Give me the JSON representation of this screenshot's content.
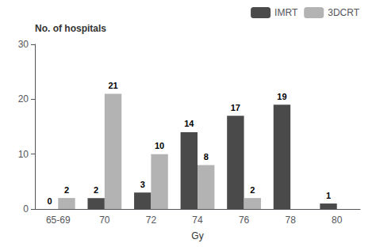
{
  "chart_data": {
    "type": "bar",
    "categories": [
      "65-69",
      "70",
      "72",
      "74",
      "76",
      "78",
      "80"
    ],
    "series": [
      {
        "name": "IMRT",
        "color": "#4a4a4a",
        "values": [
          0,
          2,
          3,
          14,
          17,
          19,
          1
        ]
      },
      {
        "name": "3DCRT",
        "color": "#b3b3b3",
        "values": [
          2,
          21,
          10,
          8,
          2,
          0,
          0
        ],
        "value_labels": [
          "2",
          "21",
          "10",
          "8",
          "2",
          null,
          null
        ]
      }
    ],
    "ylabel": "No. of hospitals",
    "xlabel": "Gy",
    "ylim": [
      0,
      30
    ],
    "yticks": [
      0,
      10,
      20,
      30
    ],
    "grid": false,
    "legend": "upper right",
    "data_labels": true
  }
}
